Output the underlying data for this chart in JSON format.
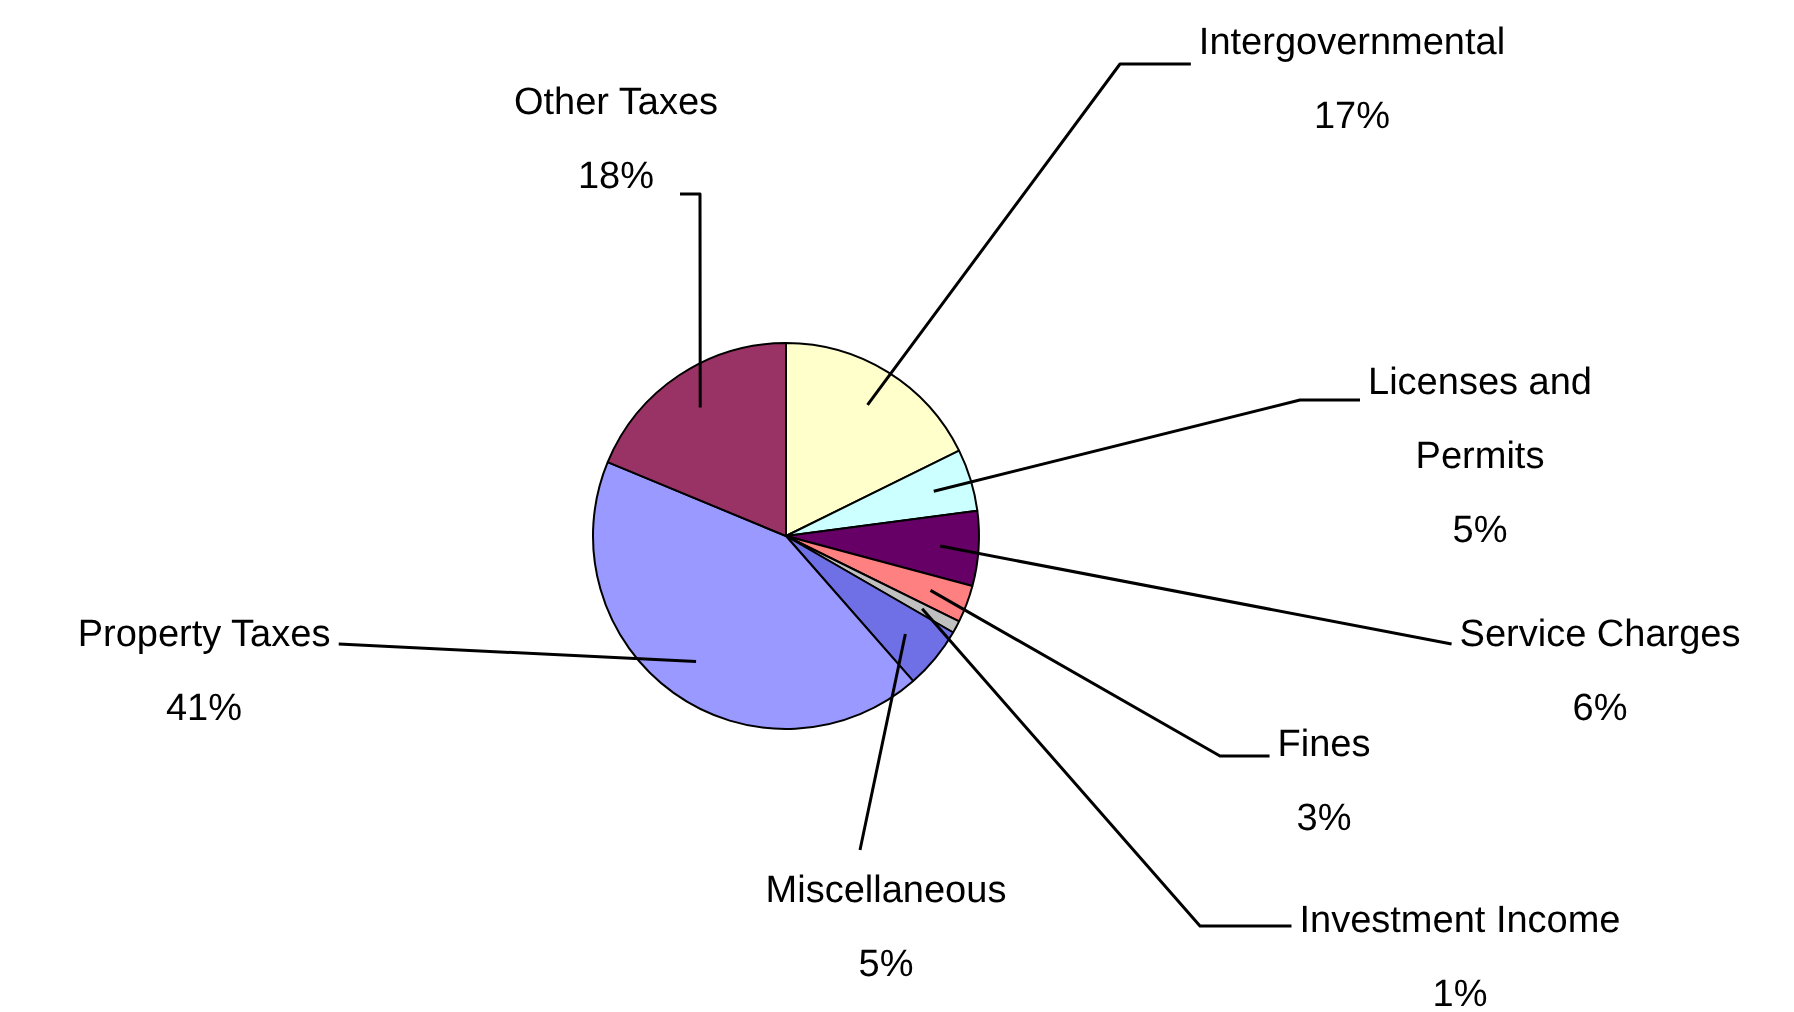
{
  "chart_data": {
    "type": "pie",
    "categories": [
      "Intergovernmental",
      "Licenses and Permits",
      "Service Charges",
      "Fines",
      "Investment Income",
      "Miscellaneous",
      "Property Taxes",
      "Other Taxes"
    ],
    "values": [
      17,
      5,
      6,
      3,
      1,
      5,
      41,
      18
    ],
    "value_labels": [
      "17%",
      "5%",
      "6%",
      "3%",
      "1%",
      "5%",
      "41%",
      "18%"
    ],
    "colors": [
      "#ffffcc",
      "#ccffff",
      "#660066",
      "#ff8080",
      "#c0c0c0",
      "#6f6fe6",
      "#9999ff",
      "#993366"
    ],
    "legend": false
  }
}
